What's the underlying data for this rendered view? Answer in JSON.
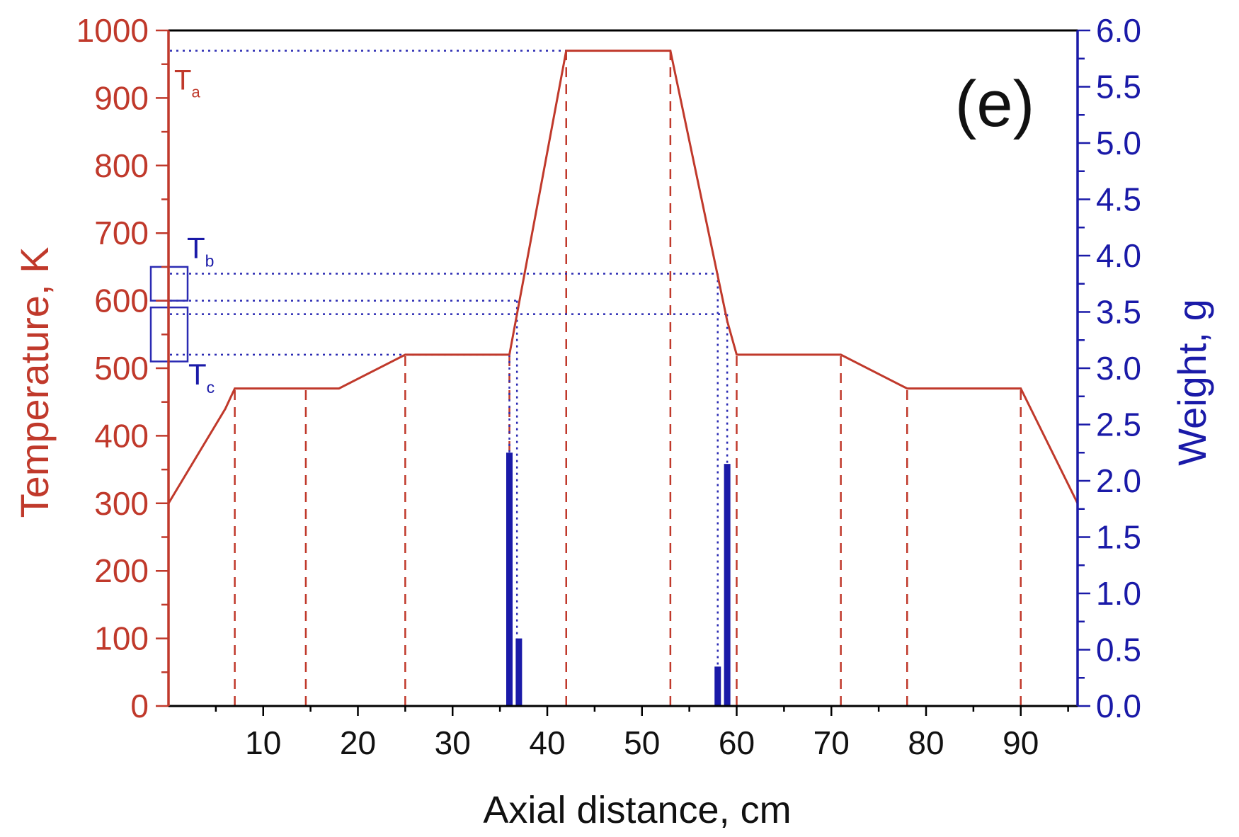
{
  "chart_data": {
    "type": "line",
    "panel_label": "(e)",
    "xlabel": "Axial distance, cm",
    "ylabel_left": "Temperature, K",
    "ylabel_right": "Weight, g",
    "xlim": [
      0,
      96
    ],
    "ylim_left": [
      0,
      1000
    ],
    "ylim_right": [
      0,
      6.0
    ],
    "x_ticks": [
      10,
      20,
      30,
      40,
      50,
      60,
      70,
      80,
      90
    ],
    "x_tick_labels": [
      "10",
      "20",
      "30",
      "40",
      "50",
      "60",
      "70",
      "80",
      "90"
    ],
    "y_left_ticks": [
      0,
      100,
      200,
      300,
      400,
      500,
      600,
      700,
      800,
      900,
      1000
    ],
    "y_left_tick_labels": [
      "0",
      "100",
      "200",
      "300",
      "400",
      "500",
      "600",
      "700",
      "800",
      "900",
      "1000"
    ],
    "y_right_ticks": [
      0,
      0.5,
      1.0,
      1.5,
      2.0,
      2.5,
      3.0,
      3.5,
      4.0,
      4.5,
      5.0,
      5.5,
      6.0
    ],
    "y_right_tick_labels": [
      "0.0",
      "0.5",
      "1.0",
      "1.5",
      "2.0",
      "2.5",
      "3.0",
      "3.5",
      "4.0",
      "4.5",
      "5.0",
      "5.5",
      "6.0"
    ],
    "grid": false,
    "colors": {
      "temperature": "#c0392b",
      "weight": "#1a1aa8",
      "guide": "#2b2bb3",
      "frame": "#000000"
    },
    "temperature_profile": {
      "x": [
        0,
        6,
        7,
        14.5,
        18,
        25,
        36,
        42,
        53,
        59,
        60,
        71,
        78,
        90,
        96
      ],
      "y": [
        300,
        440,
        470,
        470,
        470,
        520,
        520,
        970,
        970,
        570,
        520,
        520,
        470,
        470,
        300
      ]
    },
    "zone_boundaries_x": [
      7,
      14.5,
      25,
      36,
      42,
      53,
      60,
      71,
      78,
      90
    ],
    "weight_bars": {
      "x": [
        36,
        37,
        58,
        59
      ],
      "values": [
        2.25,
        0.6,
        0.35,
        2.15
      ]
    },
    "reference_levels": [
      {
        "label": "T",
        "subscript": "a",
        "temp": 970,
        "x_end": 42
      },
      {
        "label": "T",
        "subscript": "b",
        "temp": 640,
        "x_end": 58
      },
      {
        "label": "",
        "subscript": "",
        "temp": 600,
        "x_end": 36.8
      },
      {
        "label": "",
        "subscript": "",
        "temp": 580,
        "x_end": 59
      },
      {
        "label": "T",
        "subscript": "c",
        "temp": 520,
        "x_end": 36
      }
    ],
    "highlight_boxes": [
      {
        "temp_low": 600,
        "temp_high": 650
      },
      {
        "temp_low": 510,
        "temp_high": 590
      }
    ]
  }
}
